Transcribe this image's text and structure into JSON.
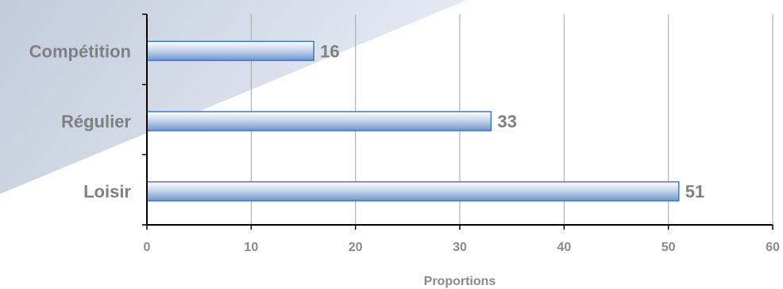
{
  "chart_data": {
    "type": "bar",
    "orientation": "horizontal",
    "categories": [
      "Compétition",
      "Régulier",
      "Loisir"
    ],
    "values": [
      16,
      33,
      51
    ],
    "data_labels": [
      "16",
      "33",
      "51"
    ],
    "xlabel": "Proportions",
    "ylabel": "",
    "xlim": [
      0,
      60
    ],
    "xticks": [
      0,
      10,
      20,
      30,
      40,
      50,
      60
    ],
    "xtick_labels": [
      "0",
      "10",
      "20",
      "30",
      "40",
      "50",
      "60"
    ],
    "grid": "vertical",
    "legend": "none",
    "colors": {
      "bar_top": "#ffffff",
      "bar_mid": "#c8d6ea",
      "bar_bottom": "#6f97c9",
      "bar_edge": "#3f78c2",
      "grid": "#a6a6a6",
      "axis": "#000000",
      "text": "#808080",
      "backdrop_light": "#e3e9f3",
      "backdrop_dark": "#b7c2d4"
    }
  }
}
